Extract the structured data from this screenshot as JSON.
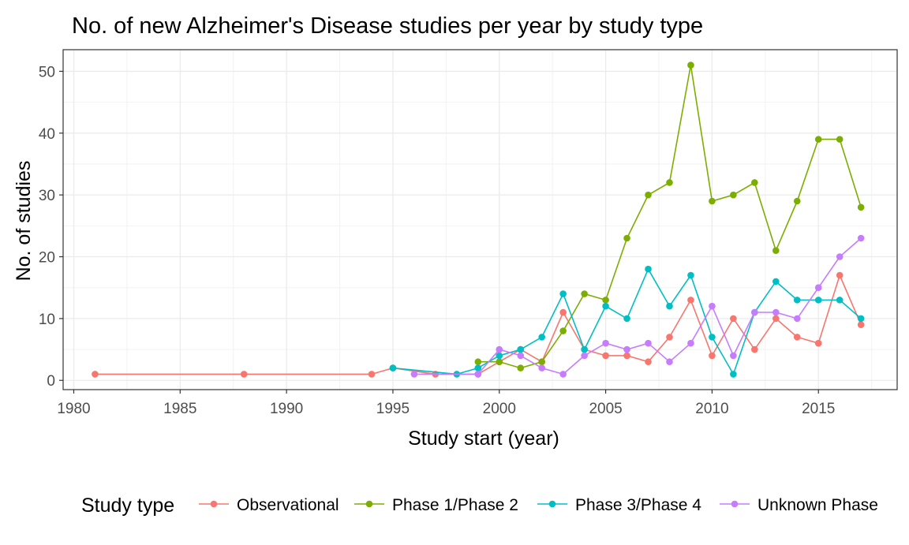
{
  "chart_data": {
    "type": "line",
    "title": "No. of new Alzheimer's Disease studies per year by study type",
    "xlabel": "Study start (year)",
    "ylabel": "No. of studies",
    "xlim": [
      1979.5,
      2018.7
    ],
    "ylim": [
      -1.5,
      53.5
    ],
    "x_ticks": [
      1980,
      1985,
      1990,
      1995,
      2000,
      2005,
      2010,
      2015
    ],
    "y_ticks": [
      0,
      10,
      20,
      30,
      40,
      50
    ],
    "grid": true,
    "legend": {
      "title": "Study type",
      "position": "bottom"
    },
    "series": [
      {
        "name": "Observational",
        "color": "#F8766D",
        "x": [
          1981,
          1988,
          1994,
          1995,
          1997,
          1999,
          2000,
          2001,
          2002,
          2003,
          2004,
          2005,
          2006,
          2007,
          2008,
          2009,
          2010,
          2011,
          2012,
          2013,
          2014,
          2015,
          2016,
          2017
        ],
        "y": [
          1,
          1,
          1,
          2,
          1,
          1,
          3,
          5,
          3,
          11,
          5,
          4,
          4,
          3,
          7,
          13,
          4,
          10,
          5,
          10,
          7,
          6,
          17,
          9
        ]
      },
      {
        "name": "Phase 1/Phase 2",
        "color": "#7CAE00",
        "x": [
          1999,
          2000,
          2001,
          2002,
          2003,
          2004,
          2005,
          2006,
          2007,
          2008,
          2009,
          2010,
          2011,
          2012,
          2013,
          2014,
          2015,
          2016,
          2017
        ],
        "y": [
          3,
          3,
          2,
          3,
          8,
          14,
          13,
          23,
          30,
          32,
          51,
          29,
          30,
          32,
          21,
          29,
          39,
          39,
          28
        ]
      },
      {
        "name": "Phase 3/Phase 4",
        "color": "#00BFC4",
        "x": [
          1995,
          1998,
          1999,
          2000,
          2001,
          2002,
          2003,
          2004,
          2005,
          2006,
          2007,
          2008,
          2009,
          2010,
          2011,
          2012,
          2013,
          2014,
          2015,
          2016,
          2017
        ],
        "y": [
          2,
          1,
          2,
          4,
          5,
          7,
          14,
          5,
          12,
          10,
          18,
          12,
          17,
          7,
          1,
          11,
          16,
          13,
          13,
          13,
          10
        ]
      },
      {
        "name": "Unknown Phase",
        "color": "#C77CFF",
        "x": [
          1996,
          1999,
          2000,
          2001,
          2002,
          2003,
          2004,
          2005,
          2006,
          2007,
          2008,
          2009,
          2010,
          2011,
          2012,
          2013,
          2014,
          2015,
          2016,
          2017
        ],
        "y": [
          1,
          1,
          5,
          4,
          2,
          1,
          4,
          6,
          5,
          6,
          3,
          6,
          12,
          4,
          11,
          11,
          10,
          15,
          20,
          23
        ]
      }
    ]
  }
}
